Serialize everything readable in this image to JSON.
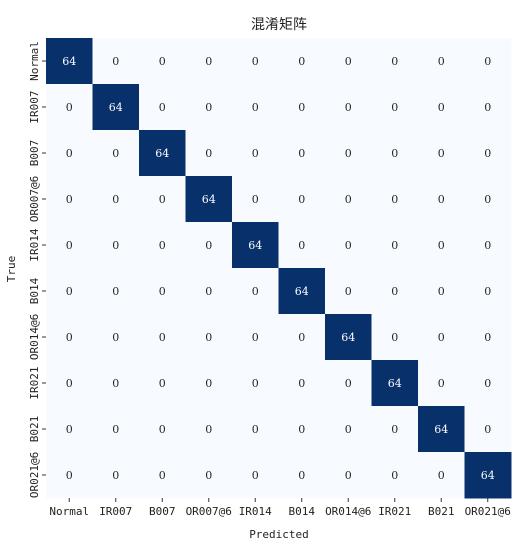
{
  "chart_data": {
    "type": "heatmap",
    "title": "混淆矩阵",
    "xlabel": "Predicted",
    "ylabel": "True",
    "categories": [
      "Normal",
      "IR007",
      "B007",
      "OR007@6",
      "IR014",
      "B014",
      "OR014@6",
      "IR021",
      "B021",
      "OR021@6"
    ],
    "values": [
      [
        64,
        0,
        0,
        0,
        0,
        0,
        0,
        0,
        0,
        0
      ],
      [
        0,
        64,
        0,
        0,
        0,
        0,
        0,
        0,
        0,
        0
      ],
      [
        0,
        0,
        64,
        0,
        0,
        0,
        0,
        0,
        0,
        0
      ],
      [
        0,
        0,
        0,
        64,
        0,
        0,
        0,
        0,
        0,
        0
      ],
      [
        0,
        0,
        0,
        0,
        64,
        0,
        0,
        0,
        0,
        0
      ],
      [
        0,
        0,
        0,
        0,
        0,
        64,
        0,
        0,
        0,
        0
      ],
      [
        0,
        0,
        0,
        0,
        0,
        0,
        64,
        0,
        0,
        0
      ],
      [
        0,
        0,
        0,
        0,
        0,
        0,
        0,
        64,
        0,
        0
      ],
      [
        0,
        0,
        0,
        0,
        0,
        0,
        0,
        0,
        64,
        0
      ],
      [
        0,
        0,
        0,
        0,
        0,
        0,
        0,
        0,
        0,
        64
      ]
    ],
    "colormap": {
      "low": "#f7fbff",
      "high": "#08306b"
    },
    "text_colors": {
      "on_dark": "#ffffff",
      "on_light": "#262626"
    },
    "grid": false,
    "colorbar": false
  }
}
